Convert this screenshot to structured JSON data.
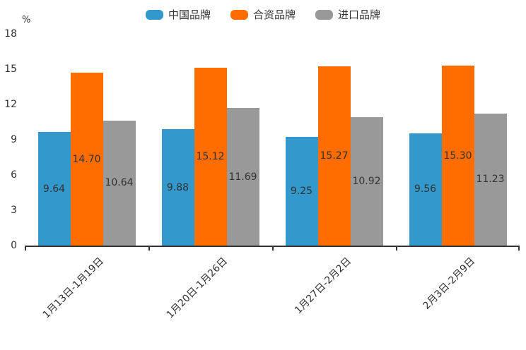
{
  "chart_data": {
    "type": "bar",
    "categories": [
      "1月13日-1月19日",
      "1月20日-1月26日",
      "1月27日-2月2日",
      "2月3日-2月9日"
    ],
    "series": [
      {
        "name": "中国品牌",
        "color": "#3398CC",
        "values": [
          9.64,
          9.88,
          9.25,
          9.56
        ]
      },
      {
        "name": "合资品牌",
        "color": "#FF6D00",
        "values": [
          14.7,
          15.12,
          15.27,
          15.3
        ]
      },
      {
        "name": "进口品牌",
        "color": "#999999",
        "values": [
          10.64,
          11.69,
          10.92,
          11.23
        ]
      }
    ],
    "ylabel": "%",
    "ylim": [
      0,
      18
    ],
    "y_ticks": [
      0,
      3,
      6,
      9,
      12,
      15,
      18
    ],
    "grid": false,
    "legend_position": "top",
    "value_labels": "inside",
    "value_label_decimals": 2,
    "axis_color": "#333333",
    "text_color": "#333333",
    "background_color": "#FFFFFF",
    "xlabel_rotation_deg": -45
  }
}
